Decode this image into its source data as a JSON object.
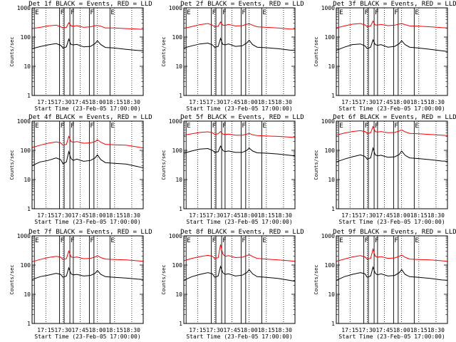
{
  "chart_data": {
    "type": "line",
    "ylabel": "Counts/sec",
    "xlabel": "Start Time (23-Feb-05 17:00:00)",
    "x_ticks": [
      "17:15",
      "17:30",
      "17:45",
      "18:00",
      "18:15",
      "18:30"
    ],
    "x_tick_minutes": [
      15,
      30,
      45,
      60,
      75,
      90
    ],
    "xlim_minutes": [
      3,
      100
    ],
    "y_scale": "log",
    "ylim": [
      1,
      1000
    ],
    "y_ticks": [
      "1",
      "10",
      "100",
      "1000"
    ],
    "y_tick_values": [
      1,
      10,
      100,
      1000
    ],
    "dotted_verticals_minutes": [
      15,
      30,
      45,
      60,
      75,
      90
    ],
    "markers": [
      {
        "label": "E",
        "x_minutes": 5
      },
      {
        "label": "F",
        "x_minutes": 27
      },
      {
        "label": "",
        "x_minutes": 31
      },
      {
        "label": "F",
        "x_minutes": 36
      },
      {
        "label": "",
        "x_minutes": 39
      },
      {
        "label": "F",
        "x_minutes": 53
      },
      {
        "label": "",
        "x_minutes": 57
      },
      {
        "label": "E",
        "x_minutes": 71
      }
    ],
    "series_colors": {
      "events": "#000000",
      "lld": "#ff0000"
    },
    "panels": [
      {
        "title": "Det 1f BLACK = Events, RED = LLD",
        "x": [
          3,
          10,
          17,
          24,
          28,
          30,
          33,
          35,
          37,
          39,
          42,
          48,
          54,
          58,
          60,
          63,
          67,
          75,
          85,
          95,
          100
        ],
        "lld": [
          195,
          215,
          240,
          255,
          225,
          205,
          215,
          310,
          240,
          235,
          245,
          215,
          225,
          245,
          250,
          235,
          205,
          205,
          195,
          188,
          182
        ],
        "events": [
          40,
          47,
          54,
          60,
          52,
          42,
          46,
          85,
          55,
          54,
          56,
          46,
          48,
          60,
          75,
          55,
          44,
          42,
          38,
          35,
          34
        ]
      },
      {
        "title": "Det 2f BLACK = Events, RED = LLD",
        "x": [
          3,
          10,
          17,
          24,
          28,
          30,
          33,
          35,
          37,
          39,
          42,
          48,
          54,
          58,
          60,
          63,
          67,
          75,
          85,
          95,
          100
        ],
        "lld": [
          200,
          230,
          265,
          290,
          255,
          225,
          235,
          330,
          255,
          250,
          270,
          240,
          245,
          275,
          285,
          255,
          225,
          215,
          205,
          190,
          185
        ],
        "events": [
          42,
          50,
          58,
          62,
          54,
          44,
          48,
          90,
          56,
          54,
          58,
          48,
          50,
          63,
          78,
          55,
          45,
          43,
          40,
          36,
          35
        ]
      },
      {
        "title": "Det 3f BLACK = Events, RED = LLD",
        "x": [
          3,
          10,
          17,
          24,
          28,
          30,
          33,
          35,
          37,
          39,
          42,
          48,
          54,
          58,
          60,
          63,
          67,
          75,
          85,
          95,
          100
        ],
        "lld": [
          205,
          240,
          275,
          290,
          260,
          225,
          240,
          350,
          260,
          255,
          270,
          245,
          255,
          280,
          290,
          265,
          240,
          235,
          225,
          210,
          205
        ],
        "events": [
          35,
          45,
          55,
          58,
          50,
          40,
          45,
          80,
          55,
          52,
          55,
          45,
          48,
          60,
          75,
          55,
          45,
          42,
          38,
          34,
          32
        ]
      },
      {
        "title": "Det 4f BLACK = Events, RED = LLD",
        "x": [
          3,
          10,
          17,
          24,
          28,
          30,
          33,
          35,
          37,
          39,
          42,
          48,
          54,
          58,
          60,
          63,
          67,
          75,
          85,
          95,
          100
        ],
        "lld": [
          125,
          150,
          175,
          195,
          180,
          150,
          160,
          300,
          200,
          190,
          200,
          175,
          180,
          200,
          230,
          190,
          160,
          155,
          150,
          130,
          120
        ],
        "events": [
          30,
          40,
          45,
          55,
          48,
          35,
          40,
          90,
          52,
          45,
          50,
          42,
          45,
          55,
          70,
          48,
          38,
          36,
          34,
          28,
          25
        ]
      },
      {
        "title": "Det 5f BLACK = Events, RED = LLD",
        "x": [
          3,
          10,
          17,
          24,
          28,
          30,
          33,
          35,
          37,
          39,
          42,
          48,
          54,
          58,
          60,
          63,
          67,
          75,
          85,
          95,
          100
        ],
        "lld": [
          330,
          370,
          410,
          430,
          400,
          350,
          370,
          440,
          360,
          350,
          360,
          330,
          330,
          360,
          380,
          340,
          320,
          310,
          300,
          285,
          275
        ],
        "events": [
          80,
          95,
          110,
          115,
          100,
          85,
          90,
          140,
          100,
          90,
          95,
          85,
          85,
          100,
          120,
          95,
          82,
          80,
          75,
          68,
          65
        ]
      },
      {
        "title": "Det 6f BLACK = Events, RED = LLD",
        "x": [
          3,
          10,
          17,
          24,
          28,
          30,
          33,
          35,
          37,
          39,
          42,
          48,
          54,
          58,
          60,
          63,
          67,
          75,
          85,
          95,
          100
        ],
        "lld": [
          330,
          390,
          440,
          470,
          440,
          380,
          400,
          650,
          440,
          420,
          440,
          400,
          410,
          460,
          500,
          430,
          380,
          370,
          350,
          330,
          320
        ],
        "events": [
          40,
          50,
          60,
          70,
          62,
          50,
          55,
          120,
          70,
          65,
          68,
          58,
          60,
          72,
          95,
          68,
          55,
          52,
          48,
          43,
          42
        ]
      },
      {
        "title": "Det 7f BLACK = Events, RED = LLD",
        "x": [
          3,
          10,
          17,
          24,
          28,
          30,
          33,
          35,
          37,
          39,
          42,
          48,
          54,
          58,
          60,
          63,
          67,
          75,
          85,
          95,
          100
        ],
        "lld": [
          130,
          155,
          180,
          200,
          185,
          155,
          165,
          300,
          190,
          180,
          190,
          165,
          170,
          190,
          210,
          180,
          160,
          155,
          150,
          140,
          135
        ],
        "events": [
          32,
          40,
          45,
          52,
          48,
          38,
          42,
          80,
          50,
          46,
          48,
          42,
          44,
          52,
          65,
          48,
          40,
          38,
          36,
          33,
          32
        ]
      },
      {
        "title": "Det 8f BLACK = Events, RED = LLD",
        "x": [
          3,
          10,
          17,
          24,
          28,
          30,
          33,
          35,
          37,
          39,
          42,
          48,
          54,
          58,
          60,
          63,
          67,
          75,
          85,
          95,
          100
        ],
        "lld": [
          140,
          170,
          195,
          215,
          200,
          165,
          180,
          500,
          240,
          200,
          210,
          180,
          185,
          210,
          230,
          195,
          170,
          160,
          150,
          140,
          135
        ],
        "events": [
          30,
          40,
          48,
          55,
          50,
          38,
          42,
          90,
          55,
          48,
          50,
          42,
          45,
          55,
          70,
          50,
          40,
          38,
          35,
          30,
          28
        ]
      },
      {
        "title": "Det 9f BLACK = Events, RED = LLD",
        "x": [
          3,
          10,
          17,
          24,
          28,
          30,
          33,
          35,
          37,
          39,
          42,
          48,
          54,
          58,
          60,
          63,
          67,
          75,
          85,
          95,
          100
        ],
        "lld": [
          135,
          160,
          190,
          210,
          190,
          160,
          170,
          350,
          200,
          185,
          195,
          170,
          175,
          200,
          220,
          185,
          160,
          155,
          150,
          140,
          135
        ],
        "events": [
          30,
          40,
          48,
          55,
          50,
          38,
          42,
          85,
          52,
          46,
          50,
          42,
          44,
          55,
          70,
          48,
          40,
          38,
          35,
          31,
          30
        ]
      }
    ]
  }
}
